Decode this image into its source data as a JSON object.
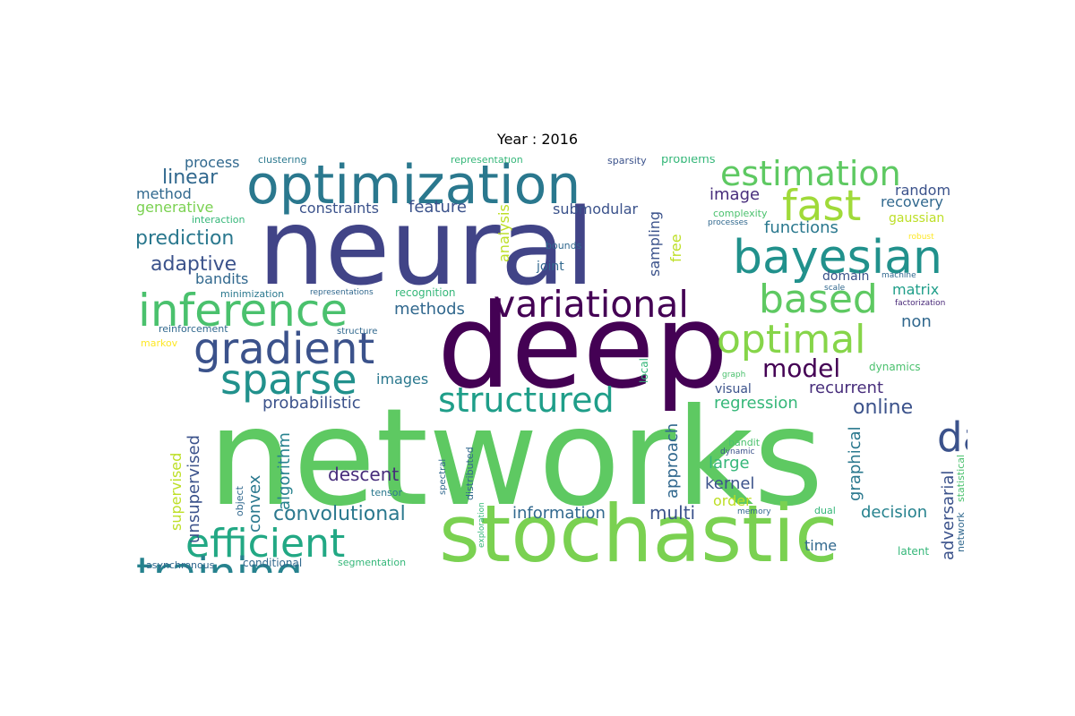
{
  "title": "Year : 2016",
  "words": [
    {
      "text": "networks",
      "color": "#5ec962"
    },
    {
      "text": "neural",
      "color": "#414487"
    },
    {
      "text": "deep",
      "color": "#440154"
    },
    {
      "text": "stochastic",
      "color": "#7ad151"
    },
    {
      "text": "optimization",
      "color": "#2a788e"
    },
    {
      "text": "inference",
      "color": "#4ac16d"
    },
    {
      "text": "bayesian",
      "color": "#21918c"
    },
    {
      "text": "variational",
      "color": "#440154"
    },
    {
      "text": "gradient",
      "color": "#3b528b"
    },
    {
      "text": "efficient",
      "color": "#22a884"
    },
    {
      "text": "estimation",
      "color": "#5ec962"
    },
    {
      "text": "fast",
      "color": "#a0da39"
    },
    {
      "text": "optimal",
      "color": "#86d549"
    },
    {
      "text": "based",
      "color": "#5ec962"
    },
    {
      "text": "structured",
      "color": "#1f9e89"
    },
    {
      "text": "sparse",
      "color": "#21918c"
    },
    {
      "text": "training",
      "color": "#26828e"
    },
    {
      "text": "data",
      "color": "#3b528b"
    },
    {
      "text": "model",
      "color": "#440154"
    },
    {
      "text": "convolutional",
      "color": "#2a788e"
    },
    {
      "text": "prediction",
      "color": "#2a788e"
    },
    {
      "text": "adaptive",
      "color": "#3b528b"
    },
    {
      "text": "linear",
      "color": "#31688e"
    },
    {
      "text": "process",
      "color": "#31688e"
    },
    {
      "text": "method",
      "color": "#31688e"
    },
    {
      "text": "generative",
      "color": "#7ad151"
    },
    {
      "text": "bandits",
      "color": "#31688e"
    },
    {
      "text": "interaction",
      "color": "#35b779"
    },
    {
      "text": "clustering",
      "color": "#2a788e"
    },
    {
      "text": "constraints",
      "color": "#3b528b"
    },
    {
      "text": "feature",
      "color": "#3b528b"
    },
    {
      "text": "submodular",
      "color": "#3b528b"
    },
    {
      "text": "representation",
      "color": "#35b779"
    },
    {
      "text": "sparsity",
      "color": "#3b528b"
    },
    {
      "text": "problems",
      "color": "#35b779"
    },
    {
      "text": "random",
      "color": "#3b528b"
    },
    {
      "text": "recovery",
      "color": "#31688e"
    },
    {
      "text": "gaussian",
      "color": "#bddf26"
    },
    {
      "text": "image",
      "color": "#472d7b"
    },
    {
      "text": "complexity",
      "color": "#4ac16d"
    },
    {
      "text": "processes",
      "color": "#31688e"
    },
    {
      "text": "robust",
      "color": "#fde725"
    },
    {
      "text": "functions",
      "color": "#2a788e"
    },
    {
      "text": "bounds",
      "color": "#31688e"
    },
    {
      "text": "joint",
      "color": "#31688e"
    },
    {
      "text": "domain",
      "color": "#3b528b"
    },
    {
      "text": "machine",
      "color": "#31688e"
    },
    {
      "text": "scale",
      "color": "#31688e"
    },
    {
      "text": "matrix",
      "color": "#1f9e89"
    },
    {
      "text": "factorization",
      "color": "#482878"
    },
    {
      "text": "minimization",
      "color": "#2a788e"
    },
    {
      "text": "representations",
      "color": "#31688e"
    },
    {
      "text": "recognition",
      "color": "#35b779"
    },
    {
      "text": "methods",
      "color": "#31688e"
    },
    {
      "text": "non",
      "color": "#31688e"
    },
    {
      "text": "reinforcement",
      "color": "#31688e"
    },
    {
      "text": "structure",
      "color": "#31688e"
    },
    {
      "text": "markov",
      "color": "#fde725"
    },
    {
      "text": "images",
      "color": "#2a788e"
    },
    {
      "text": "probabilistic",
      "color": "#3b528b"
    },
    {
      "text": "regression",
      "color": "#35b779"
    },
    {
      "text": "online",
      "color": "#3b528b"
    },
    {
      "text": "recurrent",
      "color": "#472d7b"
    },
    {
      "text": "visual",
      "color": "#3b528b"
    },
    {
      "text": "dynamics",
      "color": "#4ac16d"
    },
    {
      "text": "graph",
      "color": "#4ac16d"
    },
    {
      "text": "descent",
      "color": "#472d7b"
    },
    {
      "text": "large",
      "color": "#35b779"
    },
    {
      "text": "kernel",
      "color": "#3b528b"
    },
    {
      "text": "order",
      "color": "#bddf26"
    },
    {
      "text": "decision",
      "color": "#26828e"
    },
    {
      "text": "information",
      "color": "#31688e"
    },
    {
      "text": "multi",
      "color": "#3b528b"
    },
    {
      "text": "time",
      "color": "#31688e"
    },
    {
      "text": "latent",
      "color": "#35b779"
    },
    {
      "text": "dual",
      "color": "#35b779"
    },
    {
      "text": "memory",
      "color": "#31688e"
    },
    {
      "text": "bandit",
      "color": "#4ac16d"
    },
    {
      "text": "dynamic",
      "color": "#3b528b"
    },
    {
      "text": "asynchronous",
      "color": "#31688e"
    },
    {
      "text": "conditional",
      "color": "#31688e"
    },
    {
      "text": "segmentation",
      "color": "#35b779"
    },
    {
      "text": "tensor",
      "color": "#2a788e"
    },
    {
      "text": "unsupervised",
      "color": "#3b528b"
    },
    {
      "text": "supervised",
      "color": "#bddf26"
    },
    {
      "text": "convex",
      "color": "#2a788e"
    },
    {
      "text": "algorithm",
      "color": "#26828e"
    },
    {
      "text": "object",
      "color": "#31688e"
    },
    {
      "text": "spectral",
      "color": "#31688e"
    },
    {
      "text": "distributed",
      "color": "#31688e"
    },
    {
      "text": "exploration",
      "color": "#35b779"
    },
    {
      "text": "analysis",
      "color": "#bddf26"
    },
    {
      "text": "sampling",
      "color": "#3b528b"
    },
    {
      "text": "free",
      "color": "#bddf26"
    },
    {
      "text": "approach",
      "color": "#31688e"
    },
    {
      "text": "local",
      "color": "#35b779"
    },
    {
      "text": "graphical",
      "color": "#2a788e"
    },
    {
      "text": "adversarial",
      "color": "#3b528b"
    },
    {
      "text": "network",
      "color": "#31688e"
    },
    {
      "text": "statistical",
      "color": "#4ac16d"
    }
  ]
}
